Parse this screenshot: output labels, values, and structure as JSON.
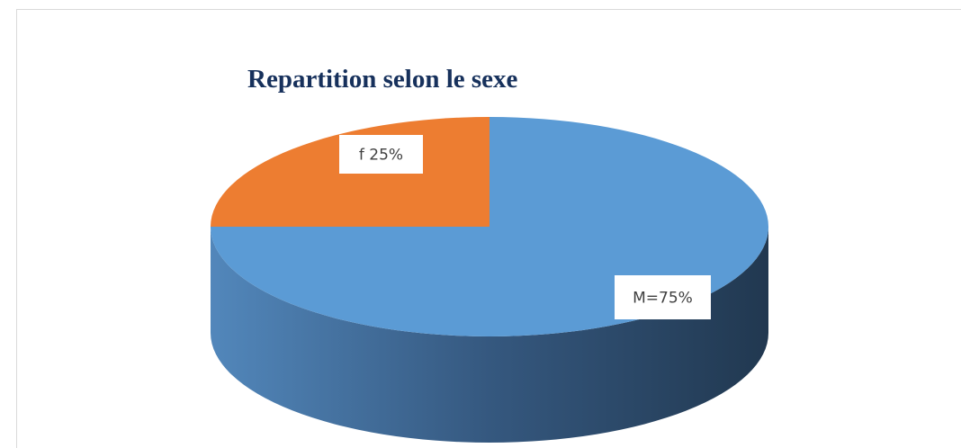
{
  "chart_data": {
    "type": "pie",
    "title": "Repartition selon le sexe",
    "values": [
      75,
      25
    ],
    "value_labels": [
      "M=75%",
      "f 25%"
    ],
    "colors": [
      "#5b9bd5",
      "#ed7d31"
    ]
  }
}
